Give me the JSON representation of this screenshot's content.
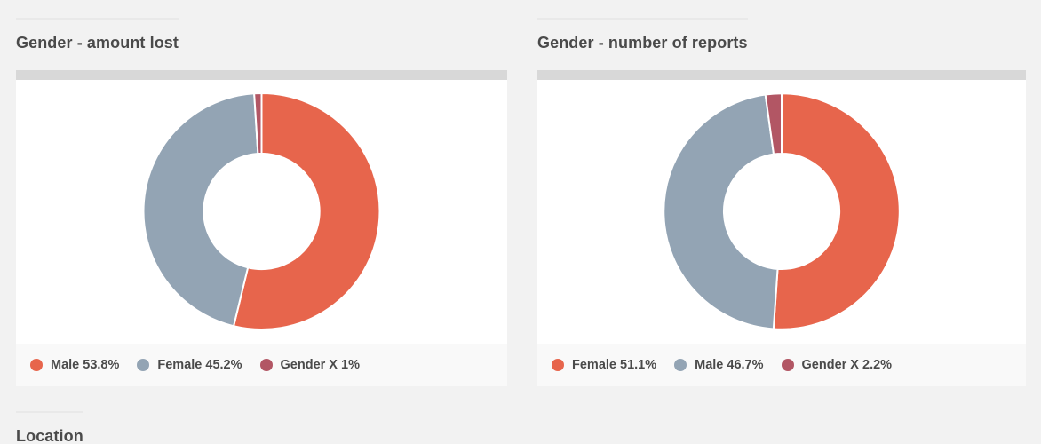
{
  "page": {
    "background_color": "#f2f2f2",
    "card_background": "#ffffff",
    "legend_strip_background": "#f9f9f9",
    "topbar_color": "#d8d8d8",
    "rule_color": "#e9e9e9",
    "title_text_color": "#4a4a4a"
  },
  "sections": {
    "location_title": "Location"
  },
  "chart_data": [
    {
      "type": "pie",
      "subtype": "donut",
      "title": "Gender - amount lost",
      "labels": [
        "Male",
        "Female",
        "Gender X"
      ],
      "values": [
        53.8,
        45.2,
        1
      ],
      "unit": "percent",
      "colors": [
        "#e7654c",
        "#93a4b4",
        "#b25664"
      ],
      "inner_radius_ratio": 0.49,
      "start_angle_deg": 0,
      "direction": "clockwise",
      "legend_position": "bottom",
      "legend": [
        "Male 53.8%",
        "Female 45.2%",
        "Gender X 1%"
      ]
    },
    {
      "type": "pie",
      "subtype": "donut",
      "title": "Gender - number of reports",
      "labels": [
        "Female",
        "Male",
        "Gender X"
      ],
      "values": [
        51.1,
        46.7,
        2.2
      ],
      "unit": "percent",
      "colors": [
        "#e7654c",
        "#93a4b4",
        "#b25664"
      ],
      "inner_radius_ratio": 0.49,
      "start_angle_deg": 0,
      "direction": "clockwise",
      "legend_position": "bottom",
      "legend": [
        "Female 51.1%",
        "Male 46.7%",
        "Gender X 2.2%"
      ]
    }
  ]
}
